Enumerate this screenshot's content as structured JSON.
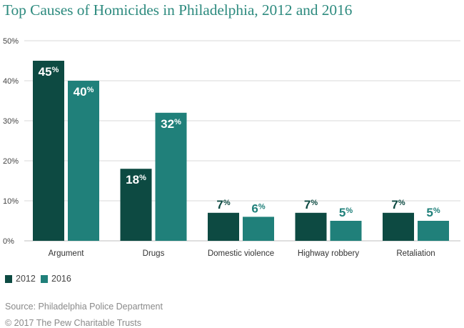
{
  "title": "Top Causes of Homicides in Philadelphia, 2012 and 2016",
  "colors": {
    "series_2012": "#0d4a42",
    "series_2016": "#20807a",
    "title": "#2e8b7f",
    "grid": "#d9d9d9"
  },
  "legend": [
    {
      "label": "2012",
      "color": "#0d4a42"
    },
    {
      "label": "2016",
      "color": "#20807a"
    }
  ],
  "source": "Source: Philadelphia Police Department",
  "copyright": "© 2017 The Pew Charitable Trusts",
  "chart_data": {
    "type": "bar",
    "title": "Top Causes of Homicides in Philadelphia, 2012 and 2016",
    "xlabel": "",
    "ylabel": "",
    "categories": [
      "Argument",
      "Drugs",
      "Domestic violence",
      "Highway robbery",
      "Retaliation"
    ],
    "series": [
      {
        "name": "2012",
        "values": [
          45,
          18,
          7,
          7,
          7
        ],
        "labels": [
          "45%",
          "18%",
          "7%",
          "7%",
          "7%"
        ]
      },
      {
        "name": "2016",
        "values": [
          40,
          32,
          6,
          5,
          5
        ],
        "labels": [
          "40%",
          "32%",
          "6%",
          "5%",
          "5%"
        ]
      }
    ],
    "ylim": [
      0,
      50
    ],
    "yticks": [
      0,
      10,
      20,
      30,
      40,
      50
    ],
    "ytick_labels": [
      "0%",
      "10%",
      "20%",
      "30%",
      "40%",
      "50%"
    ],
    "grid": true,
    "legend_position": "bottom-left"
  }
}
